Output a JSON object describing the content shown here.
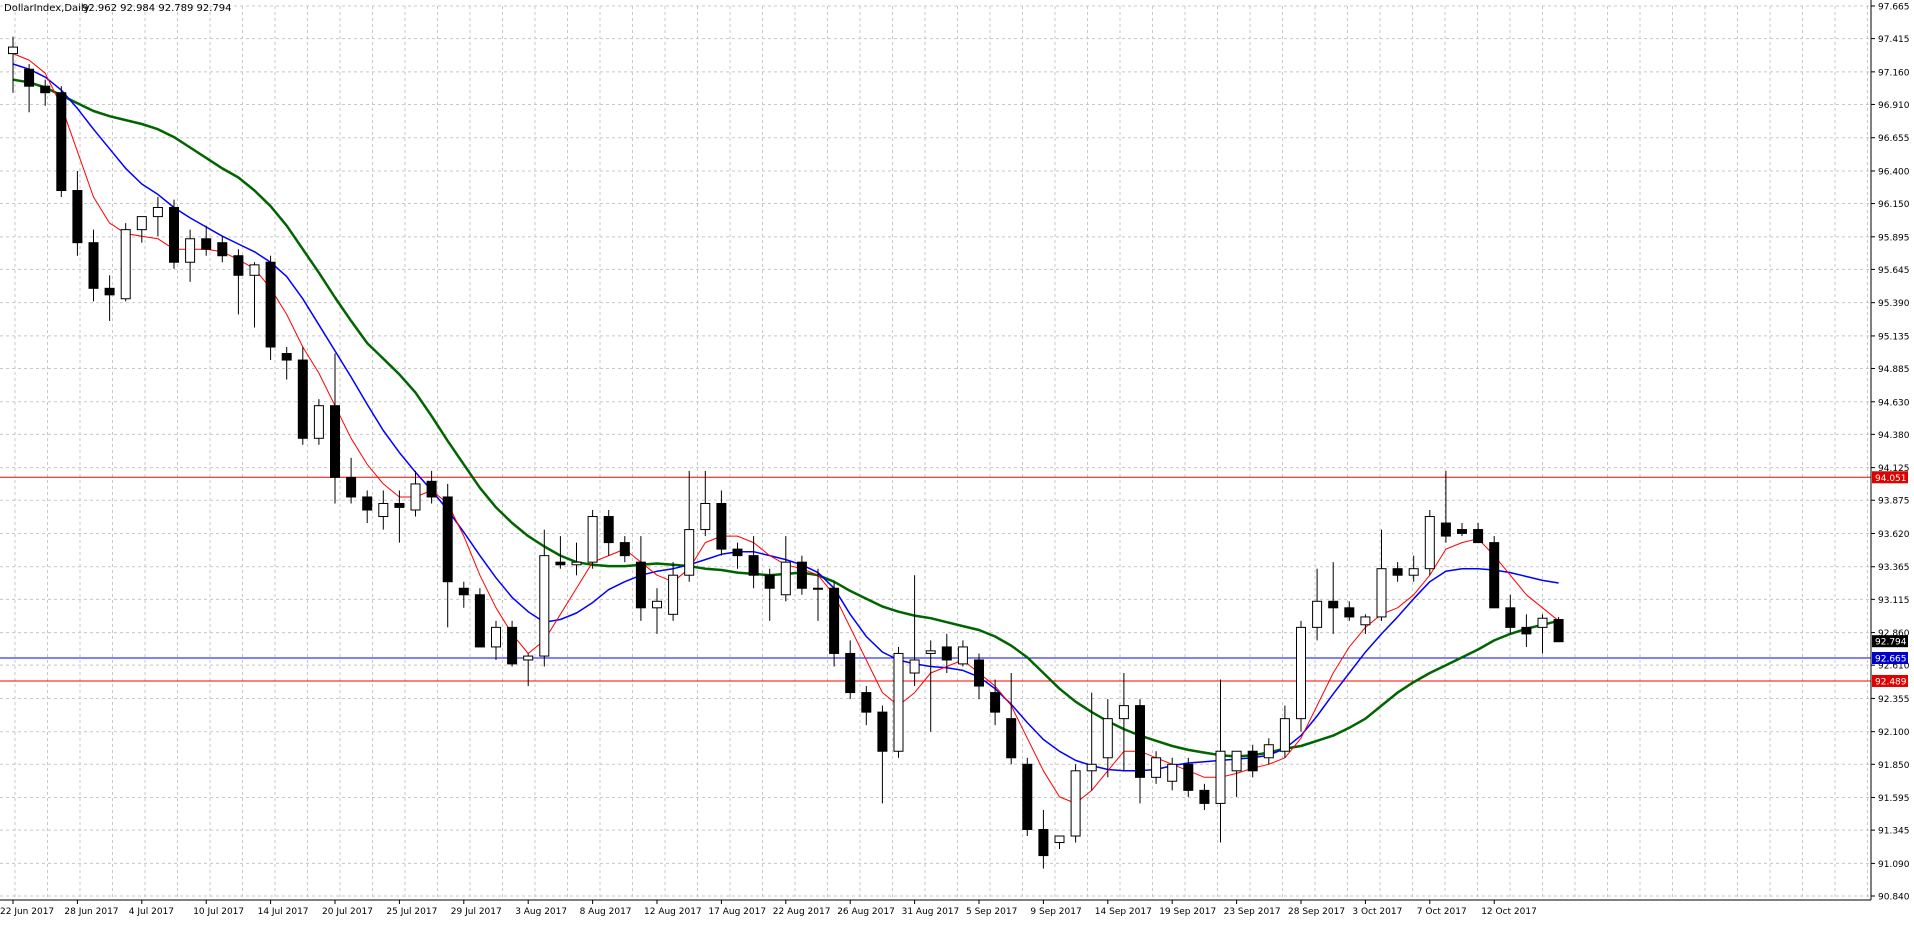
{
  "header": {
    "symbol": "DollarIndex,Daily",
    "ohlc": "92.962 92.984 92.789 92.794"
  },
  "colors": {
    "background": "#ffffff",
    "grid": "#c8c8c8",
    "bull_body": "#ffffff",
    "bear_body": "#000000",
    "ma_fast": "#ff0000",
    "ma_mid": "#0000ff",
    "ma_slow": "#006400",
    "hline_red": "#ff0000",
    "hline_blue": "#0000ff",
    "tag_red": "#e00000",
    "tag_blue": "#0000cc",
    "tag_current": "#000000"
  },
  "chart_data": {
    "type": "candlestick",
    "grid": true,
    "ylim": [
      90.84,
      97.665
    ],
    "y_ticks": [
      "97.665",
      "97.415",
      "97.160",
      "96.910",
      "96.655",
      "96.400",
      "96.150",
      "95.895",
      "95.645",
      "95.390",
      "95.135",
      "94.885",
      "94.630",
      "94.380",
      "94.125",
      "93.875",
      "93.620",
      "93.365",
      "93.115",
      "92.860",
      "92.610",
      "92.355",
      "92.100",
      "91.850",
      "91.595",
      "91.345",
      "91.090",
      "90.840"
    ],
    "x_ticks": [
      "22 Jun 2017",
      "28 Jun 2017",
      "4 Jul 2017",
      "10 Jul 2017",
      "14 Jul 2017",
      "20 Jul 2017",
      "25 Jul 2017",
      "29 Jul 2017",
      "3 Aug 2017",
      "8 Aug 2017",
      "12 Aug 2017",
      "17 Aug 2017",
      "22 Aug 2017",
      "26 Aug 2017",
      "31 Aug 2017",
      "5 Sep 2017",
      "9 Sep 2017",
      "14 Sep 2017",
      "19 Sep 2017",
      "23 Sep 2017",
      "28 Sep 2017",
      "3 Oct 2017",
      "7 Oct 2017",
      "12 Oct 2017"
    ],
    "x_tick_bar_index": [
      0,
      4,
      8,
      12,
      16,
      20,
      24,
      28,
      32,
      36,
      40,
      44,
      48,
      52,
      56,
      60,
      64,
      68,
      72,
      76,
      80,
      84,
      88,
      92
    ],
    "candles": [
      {
        "o": 97.3,
        "h": 97.43,
        "l": 97.0,
        "c": 97.35
      },
      {
        "o": 97.18,
        "h": 97.22,
        "l": 96.85,
        "c": 97.05
      },
      {
        "o": 97.05,
        "h": 97.1,
        "l": 96.9,
        "c": 97.0
      },
      {
        "o": 97.0,
        "h": 97.05,
        "l": 96.2,
        "c": 96.25
      },
      {
        "o": 96.25,
        "h": 96.4,
        "l": 95.75,
        "c": 95.85
      },
      {
        "o": 95.85,
        "h": 95.95,
        "l": 95.4,
        "c": 95.5
      },
      {
        "o": 95.5,
        "h": 95.6,
        "l": 95.25,
        "c": 95.45
      },
      {
        "o": 95.42,
        "h": 96.0,
        "l": 95.4,
        "c": 95.95
      },
      {
        "o": 95.95,
        "h": 96.05,
        "l": 95.85,
        "c": 96.05
      },
      {
        "o": 96.05,
        "h": 96.2,
        "l": 95.9,
        "c": 96.12
      },
      {
        "o": 96.12,
        "h": 96.18,
        "l": 95.65,
        "c": 95.7
      },
      {
        "o": 95.7,
        "h": 95.95,
        "l": 95.55,
        "c": 95.88
      },
      {
        "o": 95.88,
        "h": 95.98,
        "l": 95.75,
        "c": 95.8
      },
      {
        "o": 95.85,
        "h": 95.9,
        "l": 95.7,
        "c": 95.75
      },
      {
        "o": 95.75,
        "h": 95.8,
        "l": 95.3,
        "c": 95.6
      },
      {
        "o": 95.6,
        "h": 95.7,
        "l": 95.2,
        "c": 95.68
      },
      {
        "o": 95.7,
        "h": 95.75,
        "l": 94.95,
        "c": 95.05
      },
      {
        "o": 95.0,
        "h": 95.05,
        "l": 94.8,
        "c": 94.95
      },
      {
        "o": 94.95,
        "h": 95.05,
        "l": 94.3,
        "c": 94.35
      },
      {
        "o": 94.35,
        "h": 94.65,
        "l": 94.3,
        "c": 94.6
      },
      {
        "o": 94.6,
        "h": 95.0,
        "l": 93.85,
        "c": 94.05
      },
      {
        "o": 94.05,
        "h": 94.2,
        "l": 93.85,
        "c": 93.9
      },
      {
        "o": 93.9,
        "h": 93.95,
        "l": 93.7,
        "c": 93.8
      },
      {
        "o": 93.75,
        "h": 93.95,
        "l": 93.65,
        "c": 93.85
      },
      {
        "o": 93.85,
        "h": 93.95,
        "l": 93.55,
        "c": 93.82
      },
      {
        "o": 93.8,
        "h": 94.1,
        "l": 93.75,
        "c": 94.0
      },
      {
        "o": 94.02,
        "h": 94.1,
        "l": 93.85,
        "c": 93.9
      },
      {
        "o": 93.9,
        "h": 94.0,
        "l": 92.9,
        "c": 93.25
      },
      {
        "o": 93.2,
        "h": 93.25,
        "l": 93.05,
        "c": 93.15
      },
      {
        "o": 93.15,
        "h": 93.2,
        "l": 92.75,
        "c": 92.75
      },
      {
        "o": 92.75,
        "h": 92.95,
        "l": 92.65,
        "c": 92.9
      },
      {
        "o": 92.9,
        "h": 92.95,
        "l": 92.6,
        "c": 92.62
      },
      {
        "o": 92.65,
        "h": 92.7,
        "l": 92.45,
        "c": 92.68
      },
      {
        "o": 92.68,
        "h": 93.65,
        "l": 92.6,
        "c": 93.45
      },
      {
        "o": 93.4,
        "h": 93.6,
        "l": 93.35,
        "c": 93.38
      },
      {
        "o": 93.38,
        "h": 93.55,
        "l": 93.3,
        "c": 93.4
      },
      {
        "o": 93.4,
        "h": 93.8,
        "l": 93.35,
        "c": 93.75
      },
      {
        "o": 93.75,
        "h": 93.8,
        "l": 93.45,
        "c": 93.55
      },
      {
        "o": 93.55,
        "h": 93.6,
        "l": 93.4,
        "c": 93.45
      },
      {
        "o": 93.4,
        "h": 93.6,
        "l": 92.95,
        "c": 93.05
      },
      {
        "o": 93.05,
        "h": 93.2,
        "l": 92.85,
        "c": 93.1
      },
      {
        "o": 93.0,
        "h": 93.4,
        "l": 92.95,
        "c": 93.3
      },
      {
        "o": 93.3,
        "h": 94.1,
        "l": 93.25,
        "c": 93.65
      },
      {
        "o": 93.65,
        "h": 94.1,
        "l": 93.6,
        "c": 93.85
      },
      {
        "o": 93.85,
        "h": 93.95,
        "l": 93.45,
        "c": 93.5
      },
      {
        "o": 93.5,
        "h": 93.55,
        "l": 93.35,
        "c": 93.45
      },
      {
        "o": 93.45,
        "h": 93.6,
        "l": 93.2,
        "c": 93.3
      },
      {
        "o": 93.3,
        "h": 93.35,
        "l": 92.95,
        "c": 93.2
      },
      {
        "o": 93.15,
        "h": 93.6,
        "l": 93.1,
        "c": 93.4
      },
      {
        "o": 93.4,
        "h": 93.45,
        "l": 93.15,
        "c": 93.2
      },
      {
        "o": 93.2,
        "h": 93.35,
        "l": 92.95,
        "c": 93.2
      },
      {
        "o": 93.2,
        "h": 93.25,
        "l": 92.6,
        "c": 92.7
      },
      {
        "o": 92.7,
        "h": 92.8,
        "l": 92.35,
        "c": 92.4
      },
      {
        "o": 92.4,
        "h": 92.45,
        "l": 92.15,
        "c": 92.25
      },
      {
        "o": 92.25,
        "h": 92.3,
        "l": 91.55,
        "c": 91.95
      },
      {
        "o": 91.95,
        "h": 92.75,
        "l": 91.9,
        "c": 92.7
      },
      {
        "o": 92.55,
        "h": 93.3,
        "l": 92.45,
        "c": 92.65
      },
      {
        "o": 92.7,
        "h": 92.8,
        "l": 92.1,
        "c": 92.72
      },
      {
        "o": 92.75,
        "h": 92.85,
        "l": 92.55,
        "c": 92.65
      },
      {
        "o": 92.62,
        "h": 92.8,
        "l": 92.6,
        "c": 92.75
      },
      {
        "o": 92.65,
        "h": 92.7,
        "l": 92.35,
        "c": 92.45
      },
      {
        "o": 92.4,
        "h": 92.5,
        "l": 92.15,
        "c": 92.25
      },
      {
        "o": 92.2,
        "h": 92.55,
        "l": 91.85,
        "c": 91.9
      },
      {
        "o": 91.85,
        "h": 91.9,
        "l": 91.3,
        "c": 91.35
      },
      {
        "o": 91.35,
        "h": 91.5,
        "l": 91.05,
        "c": 91.15
      },
      {
        "o": 91.25,
        "h": 91.3,
        "l": 91.2,
        "c": 91.3
      },
      {
        "o": 91.3,
        "h": 91.85,
        "l": 91.25,
        "c": 91.8
      },
      {
        "o": 91.8,
        "h": 92.4,
        "l": 91.65,
        "c": 91.85
      },
      {
        "o": 91.9,
        "h": 92.35,
        "l": 91.75,
        "c": 92.2
      },
      {
        "o": 92.2,
        "h": 92.55,
        "l": 91.8,
        "c": 92.3
      },
      {
        "o": 92.3,
        "h": 92.35,
        "l": 91.55,
        "c": 91.75
      },
      {
        "o": 91.75,
        "h": 91.95,
        "l": 91.7,
        "c": 91.9
      },
      {
        "o": 91.72,
        "h": 91.9,
        "l": 91.65,
        "c": 91.85
      },
      {
        "o": 91.85,
        "h": 91.9,
        "l": 91.6,
        "c": 91.65
      },
      {
        "o": 91.65,
        "h": 91.7,
        "l": 91.5,
        "c": 91.55
      },
      {
        "o": 91.55,
        "h": 92.5,
        "l": 91.25,
        "c": 91.95
      },
      {
        "o": 91.8,
        "h": 91.95,
        "l": 91.6,
        "c": 91.95
      },
      {
        "o": 91.95,
        "h": 92.0,
        "l": 91.75,
        "c": 91.8
      },
      {
        "o": 91.9,
        "h": 92.05,
        "l": 91.85,
        "c": 92.0
      },
      {
        "o": 91.95,
        "h": 92.3,
        "l": 91.9,
        "c": 92.2
      },
      {
        "o": 92.2,
        "h": 92.95,
        "l": 92.1,
        "c": 92.9
      },
      {
        "o": 92.9,
        "h": 93.35,
        "l": 92.8,
        "c": 93.1
      },
      {
        "o": 93.1,
        "h": 93.4,
        "l": 92.85,
        "c": 93.05
      },
      {
        "o": 93.05,
        "h": 93.1,
        "l": 92.95,
        "c": 92.98
      },
      {
        "o": 92.92,
        "h": 93.0,
        "l": 92.85,
        "c": 92.98
      },
      {
        "o": 92.98,
        "h": 93.65,
        "l": 92.95,
        "c": 93.35
      },
      {
        "o": 93.35,
        "h": 93.4,
        "l": 93.25,
        "c": 93.3
      },
      {
        "o": 93.3,
        "h": 93.45,
        "l": 93.25,
        "c": 93.35
      },
      {
        "o": 93.35,
        "h": 93.8,
        "l": 93.3,
        "c": 93.75
      },
      {
        "o": 93.7,
        "h": 94.1,
        "l": 93.55,
        "c": 93.6
      },
      {
        "o": 93.65,
        "h": 93.7,
        "l": 93.6,
        "c": 93.62
      },
      {
        "o": 93.65,
        "h": 93.7,
        "l": 93.55,
        "c": 93.55
      },
      {
        "o": 93.55,
        "h": 93.6,
        "l": 93.05,
        "c": 93.05
      },
      {
        "o": 93.05,
        "h": 93.15,
        "l": 92.85,
        "c": 92.9
      },
      {
        "o": 92.9,
        "h": 93.0,
        "l": 92.75,
        "c": 92.85
      },
      {
        "o": 92.9,
        "h": 93.0,
        "l": 92.7,
        "c": 92.97
      },
      {
        "o": 92.96,
        "h": 92.98,
        "l": 92.79,
        "c": 92.79
      }
    ],
    "ma_fast": [
      97.3,
      97.25,
      97.15,
      96.9,
      96.55,
      96.2,
      96.0,
      95.92,
      95.9,
      95.88,
      95.8,
      95.8,
      95.8,
      95.78,
      95.72,
      95.65,
      95.5,
      95.3,
      95.05,
      94.85,
      94.6,
      94.35,
      94.15,
      94.0,
      93.9,
      93.9,
      93.95,
      93.85,
      93.6,
      93.3,
      93.05,
      92.85,
      92.7,
      92.8,
      93.0,
      93.2,
      93.4,
      93.45,
      93.5,
      93.4,
      93.3,
      93.25,
      93.35,
      93.55,
      93.6,
      93.6,
      93.55,
      93.45,
      93.38,
      93.35,
      93.3,
      93.15,
      92.9,
      92.65,
      92.4,
      92.3,
      92.4,
      92.55,
      92.6,
      92.65,
      92.55,
      92.45,
      92.3,
      92.05,
      91.8,
      91.6,
      91.55,
      91.65,
      91.8,
      91.95,
      91.95,
      91.9,
      91.85,
      91.8,
      91.75,
      91.75,
      91.78,
      91.82,
      91.85,
      91.9,
      92.05,
      92.3,
      92.55,
      92.75,
      92.9,
      93.0,
      93.05,
      93.15,
      93.3,
      93.5,
      93.55,
      93.58,
      93.45,
      93.3,
      93.15,
      93.05,
      92.95
    ],
    "ma_mid": [
      97.22,
      97.18,
      97.12,
      97.02,
      96.88,
      96.72,
      96.57,
      96.42,
      96.3,
      96.22,
      96.12,
      96.04,
      95.97,
      95.9,
      95.84,
      95.78,
      95.7,
      95.59,
      95.42,
      95.22,
      95.02,
      94.82,
      94.61,
      94.41,
      94.24,
      94.09,
      93.95,
      93.8,
      93.63,
      93.45,
      93.28,
      93.13,
      93.02,
      92.94,
      92.96,
      93.01,
      93.09,
      93.19,
      93.25,
      93.3,
      93.33,
      93.35,
      93.38,
      93.42,
      93.46,
      93.48,
      93.48,
      93.45,
      93.42,
      93.38,
      93.32,
      93.2,
      93.0,
      92.83,
      92.71,
      92.65,
      92.62,
      92.6,
      92.59,
      92.57,
      92.52,
      92.43,
      92.31,
      92.17,
      92.04,
      91.95,
      91.88,
      91.84,
      91.81,
      91.8,
      91.8,
      91.81,
      91.84,
      91.86,
      91.87,
      91.88,
      91.89,
      91.9,
      91.92,
      91.97,
      92.07,
      92.22,
      92.39,
      92.55,
      92.71,
      92.85,
      92.98,
      93.12,
      93.25,
      93.33,
      93.35,
      93.35,
      93.34,
      93.32,
      93.29,
      93.26,
      93.24
    ],
    "ma_slow": [
      97.1,
      97.08,
      97.04,
      96.98,
      96.92,
      96.86,
      96.82,
      96.79,
      96.76,
      96.72,
      96.66,
      96.58,
      96.5,
      96.42,
      96.35,
      96.25,
      96.13,
      95.98,
      95.8,
      95.62,
      95.43,
      95.25,
      95.08,
      94.96,
      94.84,
      94.7,
      94.52,
      94.33,
      94.15,
      93.97,
      93.82,
      93.7,
      93.6,
      93.52,
      93.45,
      93.4,
      93.38,
      93.37,
      93.37,
      93.38,
      93.39,
      93.38,
      93.37,
      93.35,
      93.34,
      93.32,
      93.31,
      93.3,
      93.31,
      93.32,
      93.3,
      93.25,
      93.18,
      93.12,
      93.06,
      93.02,
      92.99,
      92.97,
      92.94,
      92.91,
      92.88,
      92.83,
      92.76,
      92.67,
      92.55,
      92.43,
      92.33,
      92.25,
      92.18,
      92.12,
      92.07,
      92.03,
      91.99,
      91.96,
      91.94,
      91.92,
      91.91,
      91.92,
      91.94,
      91.97,
      91.99,
      92.03,
      92.07,
      92.13,
      92.2,
      92.3,
      92.4,
      92.48,
      92.55,
      92.61,
      92.67,
      92.73,
      92.8,
      92.85,
      92.89,
      92.92,
      92.95
    ],
    "hlines": [
      {
        "value": 94.051,
        "label": "94.051",
        "color": "red"
      },
      {
        "value": 92.665,
        "label": "92.665",
        "color": "blue"
      },
      {
        "value": 92.489,
        "label": "92.489",
        "color": "red"
      }
    ],
    "current_price": {
      "value": 92.794,
      "label": "92.794"
    }
  }
}
